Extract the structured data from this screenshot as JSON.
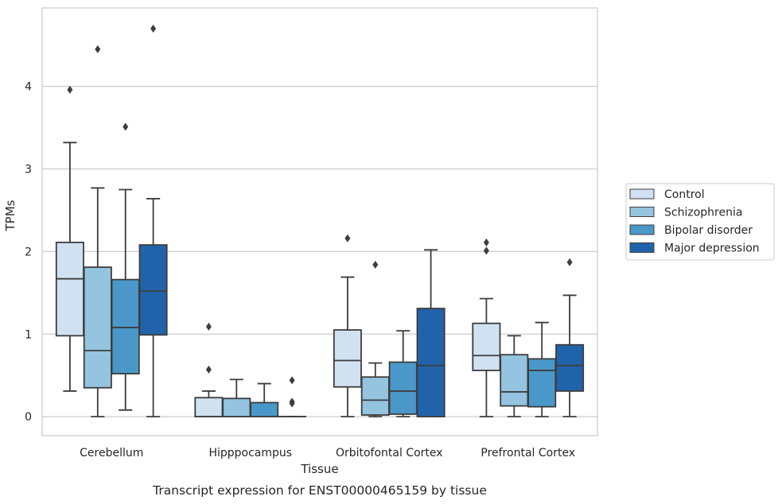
{
  "chart_data": {
    "type": "box",
    "caption": "Transcript expression for ENST00000465159 by tissue",
    "xlabel": "Tissue",
    "ylabel": "TPMs",
    "ylim": [
      -0.23,
      4.95
    ],
    "yticks": [
      "0",
      "1",
      "2",
      "3",
      "4"
    ],
    "categories": [
      "Cerebellum",
      "Hipppocampus",
      "Orbitofontal Cortex",
      "Prefrontal Cortex"
    ],
    "legend_position": "right",
    "grid": true,
    "colors": [
      "#d0e1f2",
      "#94c4df",
      "#4a98c9",
      "#2163aa"
    ],
    "series": [
      {
        "name": "Control",
        "boxes": [
          {
            "whislo": 0.31,
            "q1": 0.98,
            "med": 1.67,
            "q3": 2.11,
            "whishi": 3.32,
            "fliers": [
              3.96
            ]
          },
          {
            "whislo": 0,
            "q1": 0,
            "med": 0,
            "q3": 0.23,
            "whishi": 0.31,
            "fliers": [
              0.57,
              1.09
            ]
          },
          {
            "whislo": 0,
            "q1": 0.36,
            "med": 0.68,
            "q3": 1.05,
            "whishi": 1.69,
            "fliers": [
              2.16
            ]
          },
          {
            "whislo": 0,
            "q1": 0.56,
            "med": 0.74,
            "q3": 1.13,
            "whishi": 1.43,
            "fliers": [
              2.01,
              2.11
            ]
          }
        ]
      },
      {
        "name": "Schizophrenia",
        "boxes": [
          {
            "whislo": 0,
            "q1": 0.35,
            "med": 0.8,
            "q3": 1.81,
            "whishi": 2.77,
            "fliers": [
              4.45
            ]
          },
          {
            "whislo": 0,
            "q1": 0,
            "med": 0,
            "q3": 0.22,
            "whishi": 0.45,
            "fliers": []
          },
          {
            "whislo": 0,
            "q1": 0.02,
            "med": 0.2,
            "q3": 0.48,
            "whishi": 0.65,
            "fliers": [
              1.84
            ]
          },
          {
            "whislo": 0,
            "q1": 0.13,
            "med": 0.3,
            "q3": 0.75,
            "whishi": 0.98,
            "fliers": []
          }
        ]
      },
      {
        "name": "Bipolar disorder",
        "boxes": [
          {
            "whislo": 0.08,
            "q1": 0.52,
            "med": 1.08,
            "q3": 1.66,
            "whishi": 2.75,
            "fliers": [
              3.51
            ]
          },
          {
            "whislo": 0,
            "q1": 0,
            "med": 0,
            "q3": 0.17,
            "whishi": 0.4,
            "fliers": []
          },
          {
            "whislo": 0,
            "q1": 0.03,
            "med": 0.31,
            "q3": 0.66,
            "whishi": 1.04,
            "fliers": []
          },
          {
            "whislo": 0,
            "q1": 0.12,
            "med": 0.56,
            "q3": 0.7,
            "whishi": 1.14,
            "fliers": []
          }
        ]
      },
      {
        "name": "Major depression",
        "boxes": [
          {
            "whislo": 0,
            "q1": 0.99,
            "med": 1.52,
            "q3": 2.08,
            "whishi": 2.64,
            "fliers": [
              4.7
            ]
          },
          {
            "whislo": 0,
            "q1": 0,
            "med": 0,
            "q3": 0,
            "whishi": 0,
            "fliers": [
              0.16,
              0.18,
              0.44
            ]
          },
          {
            "whislo": 0,
            "q1": 0,
            "med": 0.62,
            "q3": 1.31,
            "whishi": 2.02,
            "fliers": []
          },
          {
            "whislo": 0,
            "q1": 0.31,
            "med": 0.62,
            "q3": 0.87,
            "whishi": 1.47,
            "fliers": [
              1.87
            ]
          }
        ]
      }
    ]
  }
}
